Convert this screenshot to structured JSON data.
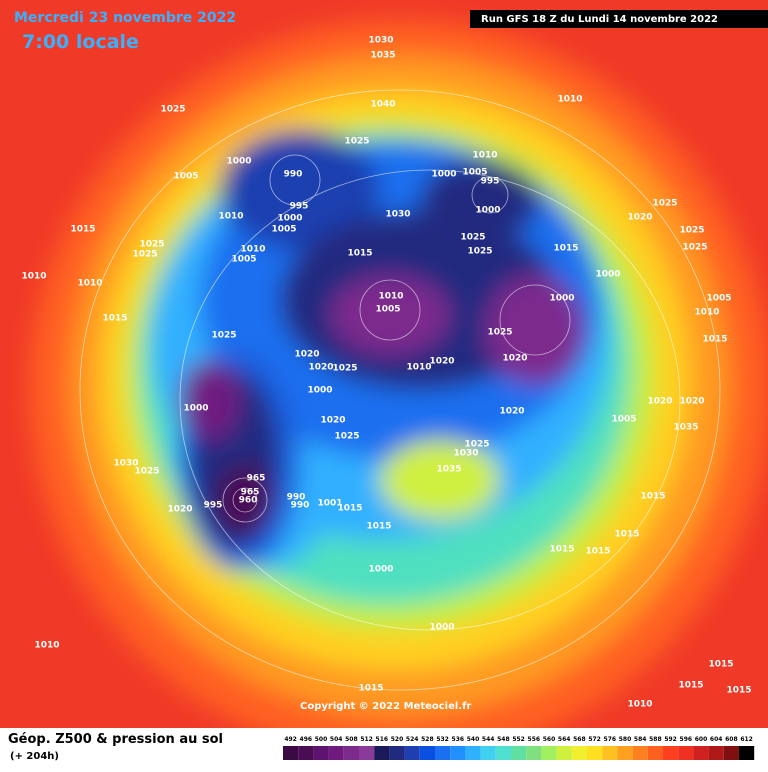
{
  "header": {
    "date": "Mercredi 23 novembre 2022",
    "time": "7:00 locale",
    "run": "Run GFS 18 Z du Lundi 14 novembre 2022"
  },
  "copyright": "Copyright © 2022 Meteociel.fr",
  "footer": {
    "title": "Géop. Z500 & pression au sol",
    "lead": "(+ 204h)"
  },
  "legend": {
    "ticks": [
      492,
      496,
      500,
      504,
      508,
      512,
      516,
      520,
      524,
      528,
      532,
      536,
      540,
      544,
      548,
      552,
      556,
      560,
      564,
      568,
      572,
      576,
      580,
      584,
      588,
      592,
      596,
      600,
      604,
      608,
      612
    ],
    "colors": [
      "#3b0a45",
      "#4a0d55",
      "#5e1370",
      "#701a80",
      "#7d2a8d",
      "#8a3a98",
      "#1a1a5a",
      "#202a80",
      "#1f3fb0",
      "#0a50e0",
      "#1a70f0",
      "#2090ff",
      "#30b0ff",
      "#40d0f0",
      "#50e0d0",
      "#60e0a0",
      "#80e080",
      "#a0f060",
      "#d0f040",
      "#f0f030",
      "#ffe020",
      "#ffc020",
      "#ffa020",
      "#ff8020",
      "#ff6020",
      "#ff4020",
      "#f03020",
      "#d02020",
      "#b01818",
      "#801010",
      "#000000"
    ]
  },
  "isobar_labels": [
    "1025",
    "1030",
    "1035",
    "1040",
    "1010",
    "1025",
    "1000",
    "1005",
    "990",
    "995",
    "1000",
    "1005",
    "1010",
    "1010",
    "1005",
    "1015",
    "1025",
    "1025",
    "1010",
    "1010",
    "1015",
    "1010",
    "1000",
    "1005",
    "995",
    "1000",
    "1030",
    "1025",
    "1025",
    "1015",
    "1015",
    "1000",
    "1020",
    "1025",
    "1025",
    "1025",
    "1000",
    "1010",
    "1005",
    "1025",
    "1020",
    "1025",
    "1020",
    "1020",
    "1025",
    "1000",
    "1000",
    "1020",
    "1010",
    "1020",
    "1005",
    "1020",
    "1020",
    "1035",
    "1025",
    "1030",
    "1035",
    "1020",
    "1025",
    "1030",
    "1025",
    "1020",
    "965",
    "965",
    "960",
    "995",
    "990",
    "990",
    "1001",
    "1015",
    "1015",
    "1000",
    "1000",
    "1015",
    "1015",
    "1015",
    "1015",
    "1010",
    "1015",
    "1010",
    "1015",
    "1015",
    "1015",
    "1005",
    "1010",
    "1015"
  ]
}
